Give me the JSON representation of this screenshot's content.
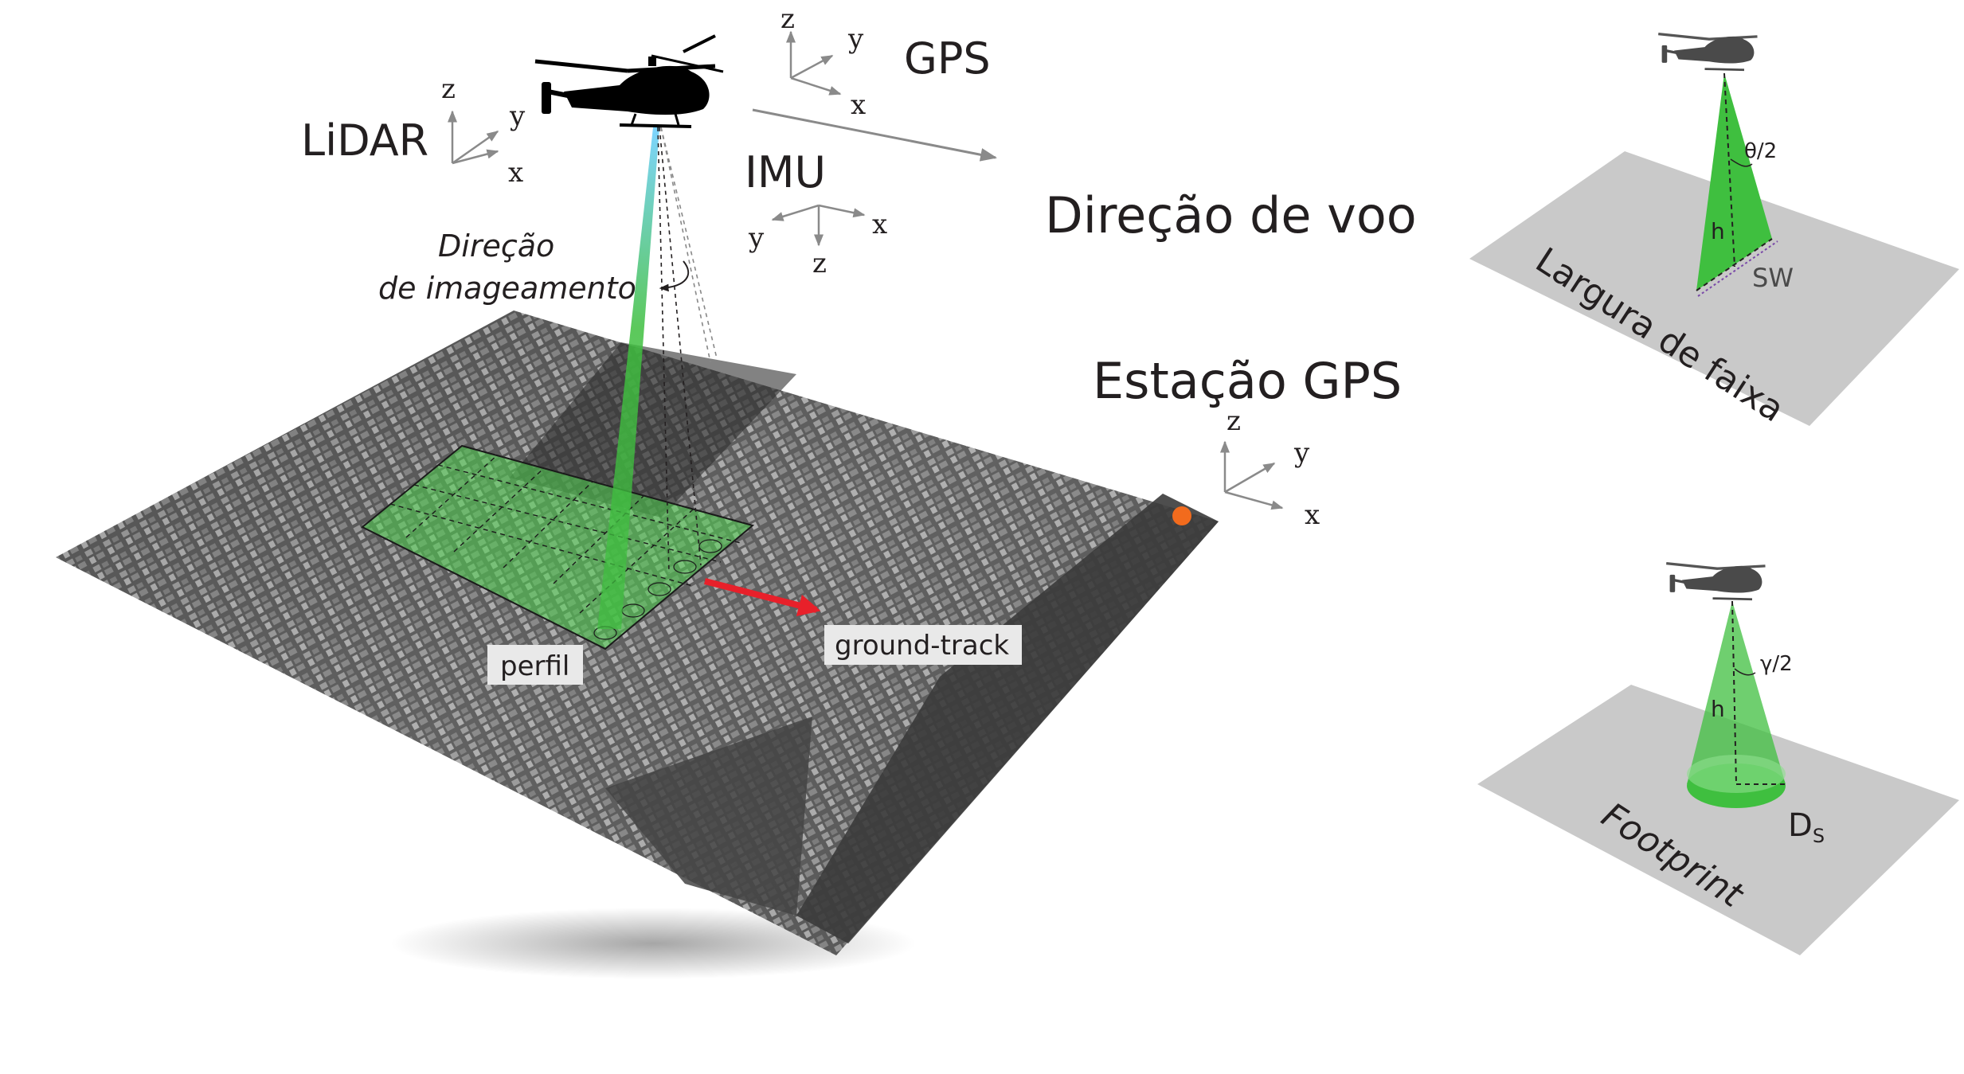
{
  "main": {
    "lidar_label": "LiDAR",
    "gps_label": "GPS",
    "imu_label": "IMU",
    "flight_direction_label": "Direção de voo",
    "imaging_direction_line1": "Direção",
    "imaging_direction_line2": "de imageamento",
    "gps_station_label": "Estação GPS",
    "profile_label": "perfil",
    "ground_track_label": "ground-track",
    "axes": {
      "lidar": {
        "x": "x",
        "y": "y",
        "z": "z"
      },
      "gps": {
        "x": "x",
        "y": "y",
        "z": "z"
      },
      "imu": {
        "x": "x",
        "y": "y",
        "z": "z"
      },
      "station": {
        "x": "x",
        "y": "y",
        "z": "z"
      }
    }
  },
  "inset_swath": {
    "angle_label": "θ/2",
    "height_label": "h",
    "sw_label": "SW",
    "caption": "Largura de faixa"
  },
  "inset_footprint": {
    "angle_label": "γ/2",
    "height_label": "h",
    "diameter_label": "D",
    "diameter_subscript": "S",
    "caption": "Footprint"
  },
  "colors": {
    "beam_green": "#3fbf3f",
    "grid_green": "#4fd24f",
    "plane_gray": "#c9c9c9",
    "ground_track_arrow": "#e8202a",
    "station_marker": "#f26b1d",
    "axis_gray": "#8a8a8a",
    "text_dark": "#231f20"
  }
}
